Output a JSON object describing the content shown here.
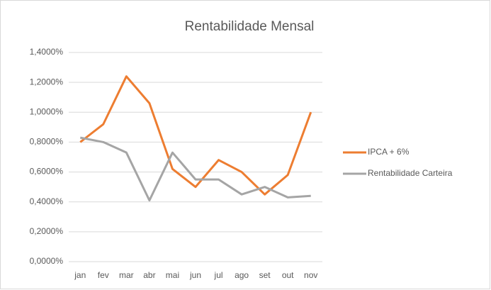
{
  "chart_data": {
    "type": "line",
    "title": "Rentabilidade Mensal",
    "categories": [
      "jan",
      "fev",
      "mar",
      "abr",
      "mai",
      "jun",
      "jul",
      "ago",
      "set",
      "out",
      "nov"
    ],
    "series": [
      {
        "name": "IPCA + 6%",
        "color": "#ed7d31",
        "values": [
          0.8,
          0.92,
          1.24,
          1.06,
          0.62,
          0.5,
          0.68,
          0.6,
          0.45,
          0.58,
          1.0
        ]
      },
      {
        "name": "Rentabilidade Carteira",
        "color": "#a5a5a5",
        "values": [
          0.83,
          0.8,
          0.73,
          0.41,
          0.73,
          0.55,
          0.55,
          0.45,
          0.5,
          0.43,
          0.44
        ]
      }
    ],
    "ylim": [
      0,
      1.4
    ],
    "yticks": [
      {
        "value": 0,
        "label": "0,0000%"
      },
      {
        "value": 0.2,
        "label": "0,2000%"
      },
      {
        "value": 0.4,
        "label": "0,4000%"
      },
      {
        "value": 0.6,
        "label": "0,6000%"
      },
      {
        "value": 0.8,
        "label": "0,8000%"
      },
      {
        "value": 1.0,
        "label": "1,0000%"
      },
      {
        "value": 1.2,
        "label": "1,2000%"
      },
      {
        "value": 1.4,
        "label": "1,4000%"
      }
    ],
    "grid": true,
    "legend": "right"
  }
}
